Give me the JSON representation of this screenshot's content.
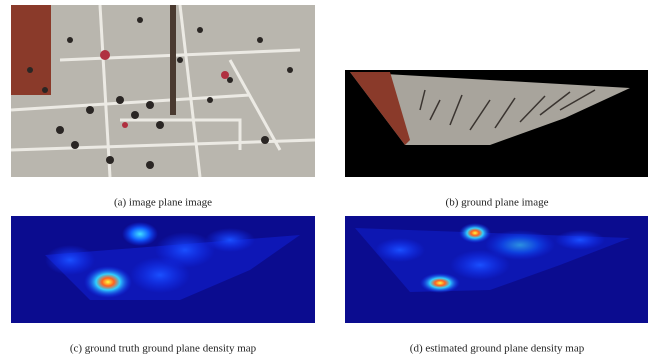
{
  "subfigures": [
    {
      "caption": "(a) image plane image"
    },
    {
      "caption": "(b) ground plane image"
    },
    {
      "caption": "(c) ground truth ground plane density map"
    },
    {
      "caption": "(d) estimated ground plane density map"
    }
  ]
}
